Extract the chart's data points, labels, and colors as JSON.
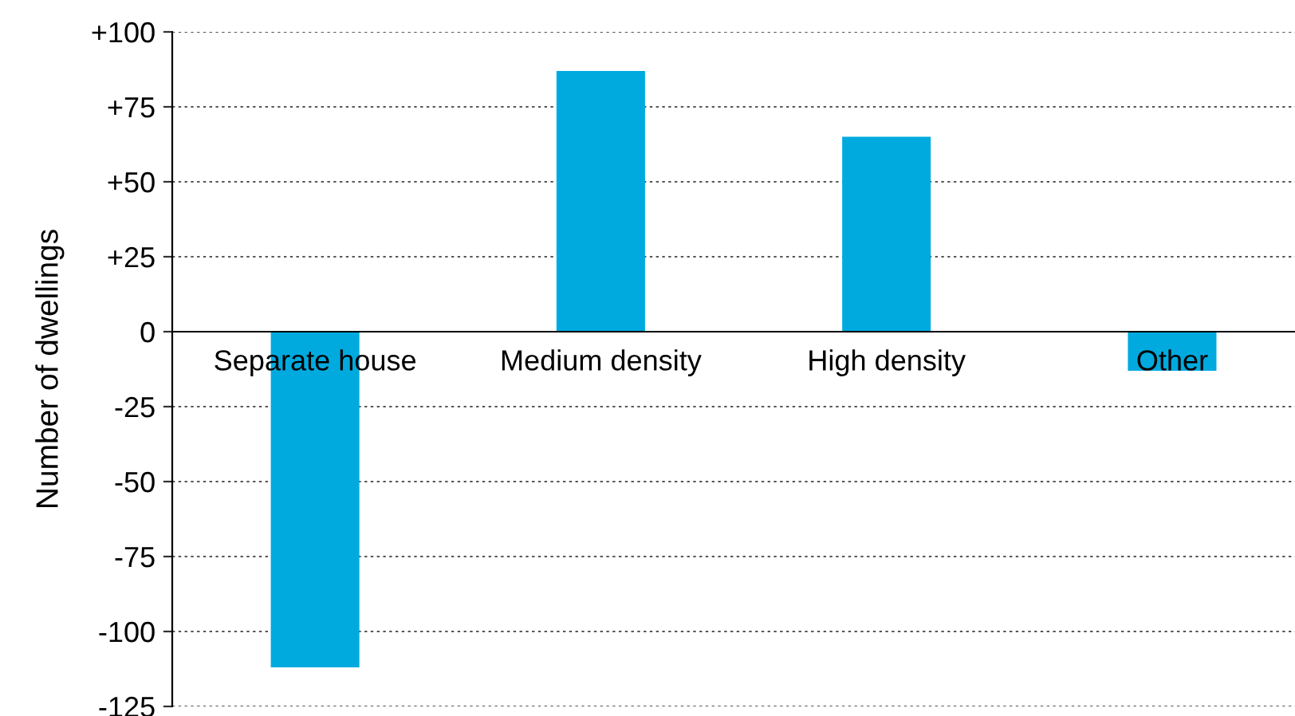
{
  "chart_data": {
    "type": "bar",
    "ylabel": "Number of dwellings",
    "categories": [
      "Separate house",
      "Medium density",
      "High density",
      "Other"
    ],
    "values": [
      -112,
      87,
      65,
      -13
    ],
    "color": "#00aadf",
    "ylim": [
      -125,
      100
    ],
    "yticks": [
      {
        "value": 100,
        "label": "+100"
      },
      {
        "value": 75,
        "label": "+75"
      },
      {
        "value": 50,
        "label": "+50"
      },
      {
        "value": 25,
        "label": "+25"
      },
      0,
      -25,
      -50,
      -75,
      -100,
      -125
    ],
    "grid": "y"
  }
}
